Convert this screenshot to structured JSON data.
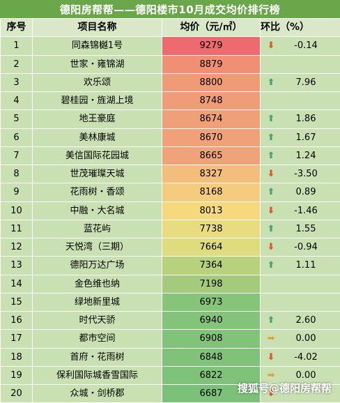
{
  "title": "德阳房帮帮——德阳楼市10月成交均价排行榜",
  "headers": {
    "idx": "序号",
    "name": "项目名称",
    "price": "均价（元/㎡）",
    "change": "环比（%）"
  },
  "colors": {
    "high": "#ee6a6e",
    "low": "#7cc17a",
    "header": "#6aa74a"
  },
  "rows": [
    {
      "idx": "1",
      "name": "同森锦樾1号",
      "price": "9279",
      "change": "-0.14",
      "dir": "down",
      "bg": "#ee6a6e"
    },
    {
      "idx": "2",
      "name": "世家・雍锦湖",
      "price": "8879",
      "change": "",
      "dir": "",
      "bg": "#f08f74"
    },
    {
      "idx": "3",
      "name": "欢乐颂",
      "price": "8800",
      "change": "7.96",
      "dir": "up",
      "bg": "#f19a76"
    },
    {
      "idx": "4",
      "name": "碧桂园・旌湖上境",
      "price": "8748",
      "change": "",
      "dir": "",
      "bg": "#f09d77"
    },
    {
      "idx": "5",
      "name": "地王豪庭",
      "price": "8674",
      "change": "1.86",
      "dir": "up",
      "bg": "#f0a078"
    },
    {
      "idx": "6",
      "name": "美林康城",
      "price": "8670",
      "change": "1.67",
      "dir": "up",
      "bg": "#f0a178"
    },
    {
      "idx": "7",
      "name": "美信国际花园城",
      "price": "8665",
      "change": "1.24",
      "dir": "up",
      "bg": "#f0a379"
    },
    {
      "idx": "8",
      "name": "世茂璀璨天城",
      "price": "8327",
      "change": "-3.50",
      "dir": "down",
      "bg": "#f3bd7c"
    },
    {
      "idx": "9",
      "name": "花雨树・香颂",
      "price": "8168",
      "change": "0.89",
      "dir": "up",
      "bg": "#f5cb7e"
    },
    {
      "idx": "10",
      "name": "中融・大名城",
      "price": "8013",
      "change": "-1.46",
      "dir": "down",
      "bg": "#f6d97f"
    },
    {
      "idx": "11",
      "name": "蓝花屿",
      "price": "7738",
      "change": "1.55",
      "dir": "up",
      "bg": "#e9dc80"
    },
    {
      "idx": "12",
      "name": "天悦湾（三期）",
      "price": "7664",
      "change": "-0.94",
      "dir": "down",
      "bg": "#dfdb7f"
    },
    {
      "idx": "13",
      "name": "德阳万达广场",
      "price": "7364",
      "change": "1.11",
      "dir": "up",
      "bg": "#b7d17c"
    },
    {
      "idx": "14",
      "name": "金色维也纳",
      "price": "7198",
      "change": "",
      "dir": "",
      "bg": "#a4cb7b"
    },
    {
      "idx": "15",
      "name": "绿地新里城",
      "price": "6973",
      "change": "",
      "dir": "",
      "bg": "#86c47a"
    },
    {
      "idx": "16",
      "name": "时代天骄",
      "price": "6940",
      "change": "2.60",
      "dir": "up",
      "bg": "#84c37a"
    },
    {
      "idx": "17",
      "name": "都市空间",
      "price": "6908",
      "change": "0.00",
      "dir": "flat",
      "bg": "#82c37a"
    },
    {
      "idx": "18",
      "name": "首府・花雨树",
      "price": "6848",
      "change": "-4.02",
      "dir": "down",
      "bg": "#80c27a"
    },
    {
      "idx": "19",
      "name": "保利国际城香雪国际",
      "price": "6822",
      "change": "0.00",
      "dir": "flat",
      "bg": "#7fc27a"
    },
    {
      "idx": "20",
      "name": "众城・剑桥郡",
      "price": "6687",
      "change": "",
      "dir": "down",
      "bg": "#7cc17a"
    }
  ],
  "watermark": {
    "text": "搜狐号@德阳房帮帮",
    "icon": "sohu-logo-icon"
  }
}
